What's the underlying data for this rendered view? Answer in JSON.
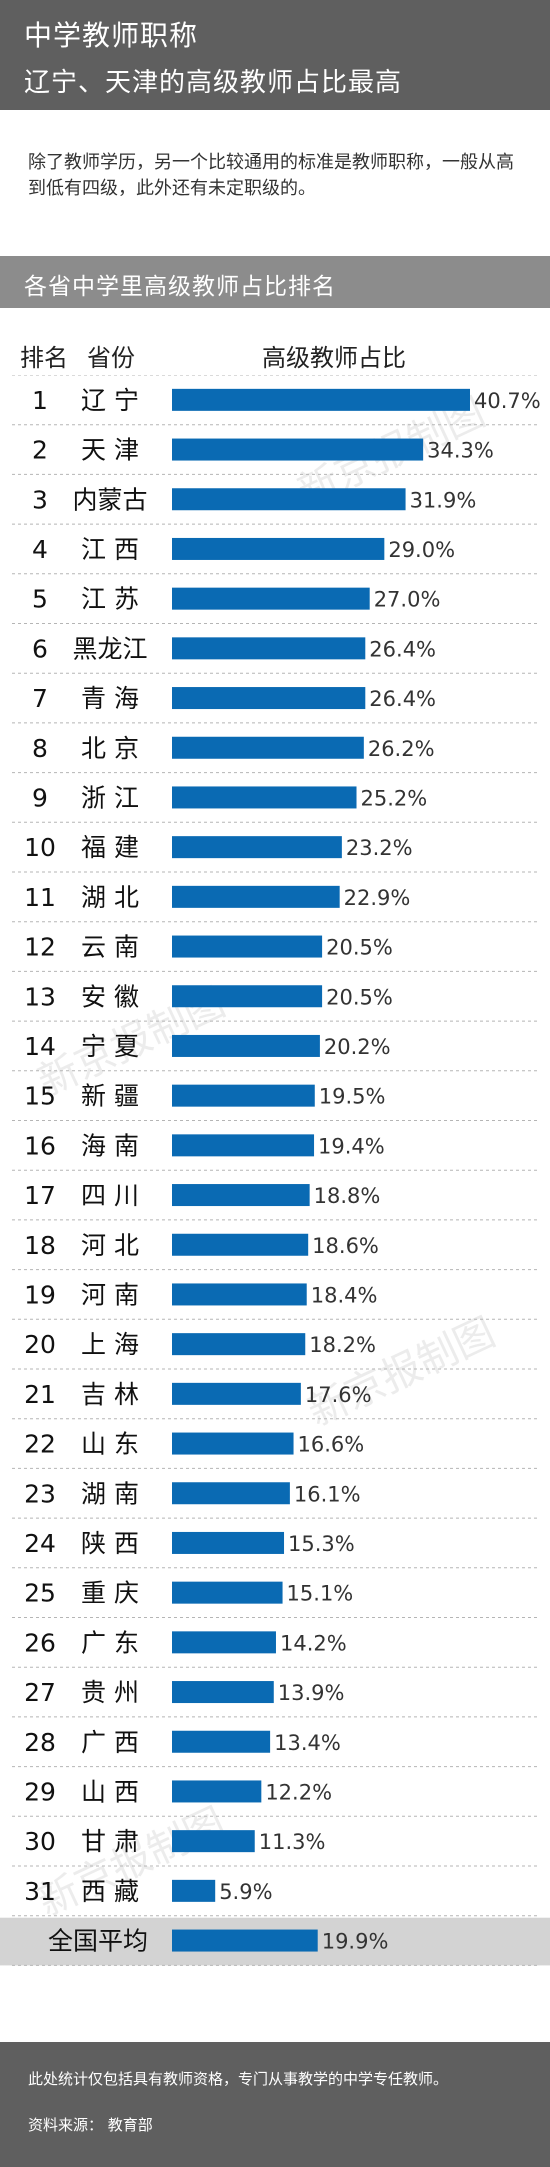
{
  "header": {
    "title": "中学教师职称",
    "subtitle": "辽宁、天津的高级教师占比最高"
  },
  "intro": "除了教师学历，另一个比较通用的标准是教师职称，一般从高到低有四级，此外还有未定职级的。",
  "section_title": "各省中学里高级教师占比排名",
  "columns": {
    "rank": "排名",
    "province": "省份",
    "ratio": "高级教师占比"
  },
  "colors": {
    "bar": "#0a6ab3",
    "header_bg": "#5f5f5f",
    "section_bg": "#8c8c8c",
    "avg_row_bg": "#d3d3d3"
  },
  "chart_data": {
    "type": "bar",
    "orientation": "horizontal",
    "title": "各省中学里高级教师占比排名",
    "categories": [
      "辽 宁",
      "天 津",
      "内蒙古",
      "江 西",
      "江 苏",
      "黑龙江",
      "青 海",
      "北 京",
      "浙 江",
      "福 建",
      "湖 北",
      "云 南",
      "安 徽",
      "宁 夏",
      "新 疆",
      "海 南",
      "四 川",
      "河 北",
      "河 南",
      "上 海",
      "吉 林",
      "山 东",
      "湖 南",
      "陕 西",
      "重 庆",
      "广 东",
      "贵 州",
      "广 西",
      "山 西",
      "甘 肃",
      "西 藏"
    ],
    "ranks": [
      "1",
      "2",
      "3",
      "4",
      "5",
      "6",
      "7",
      "8",
      "9",
      "10",
      "11",
      "12",
      "13",
      "14",
      "15",
      "16",
      "17",
      "18",
      "19",
      "20",
      "21",
      "22",
      "23",
      "24",
      "25",
      "26",
      "27",
      "28",
      "29",
      "30",
      "31"
    ],
    "values": [
      40.7,
      34.3,
      31.9,
      29.0,
      27.0,
      26.4,
      26.4,
      26.2,
      25.2,
      23.2,
      22.9,
      20.5,
      20.5,
      20.2,
      19.5,
      19.4,
      18.8,
      18.6,
      18.4,
      18.2,
      17.6,
      16.6,
      16.1,
      15.3,
      15.1,
      14.2,
      13.9,
      13.4,
      12.2,
      11.3,
      5.9
    ],
    "labels": [
      "40.7%",
      "34.3%",
      "31.9%",
      "29.0%",
      "27.0%",
      "26.4%",
      "26.4%",
      "26.2%",
      "25.2%",
      "23.2%",
      "22.9%",
      "20.5%",
      "20.5%",
      "20.2%",
      "19.5%",
      "19.4%",
      "18.8%",
      "18.6%",
      "18.4%",
      "18.2%",
      "17.6%",
      "16.6%",
      "16.1%",
      "15.3%",
      "15.1%",
      "14.2%",
      "13.9%",
      "13.4%",
      "12.2%",
      "11.3%",
      "5.9%"
    ],
    "average": {
      "label": "全国平均",
      "value": 19.9,
      "value_label": "19.9%"
    },
    "unit": "%",
    "xlim": [
      0,
      40.7
    ]
  },
  "footer": {
    "note": "此处统计仅包括具有教师资格，专门从事教学的中学专任教师。",
    "source": "资料来源：  教育部"
  },
  "watermark": "新京报制图"
}
